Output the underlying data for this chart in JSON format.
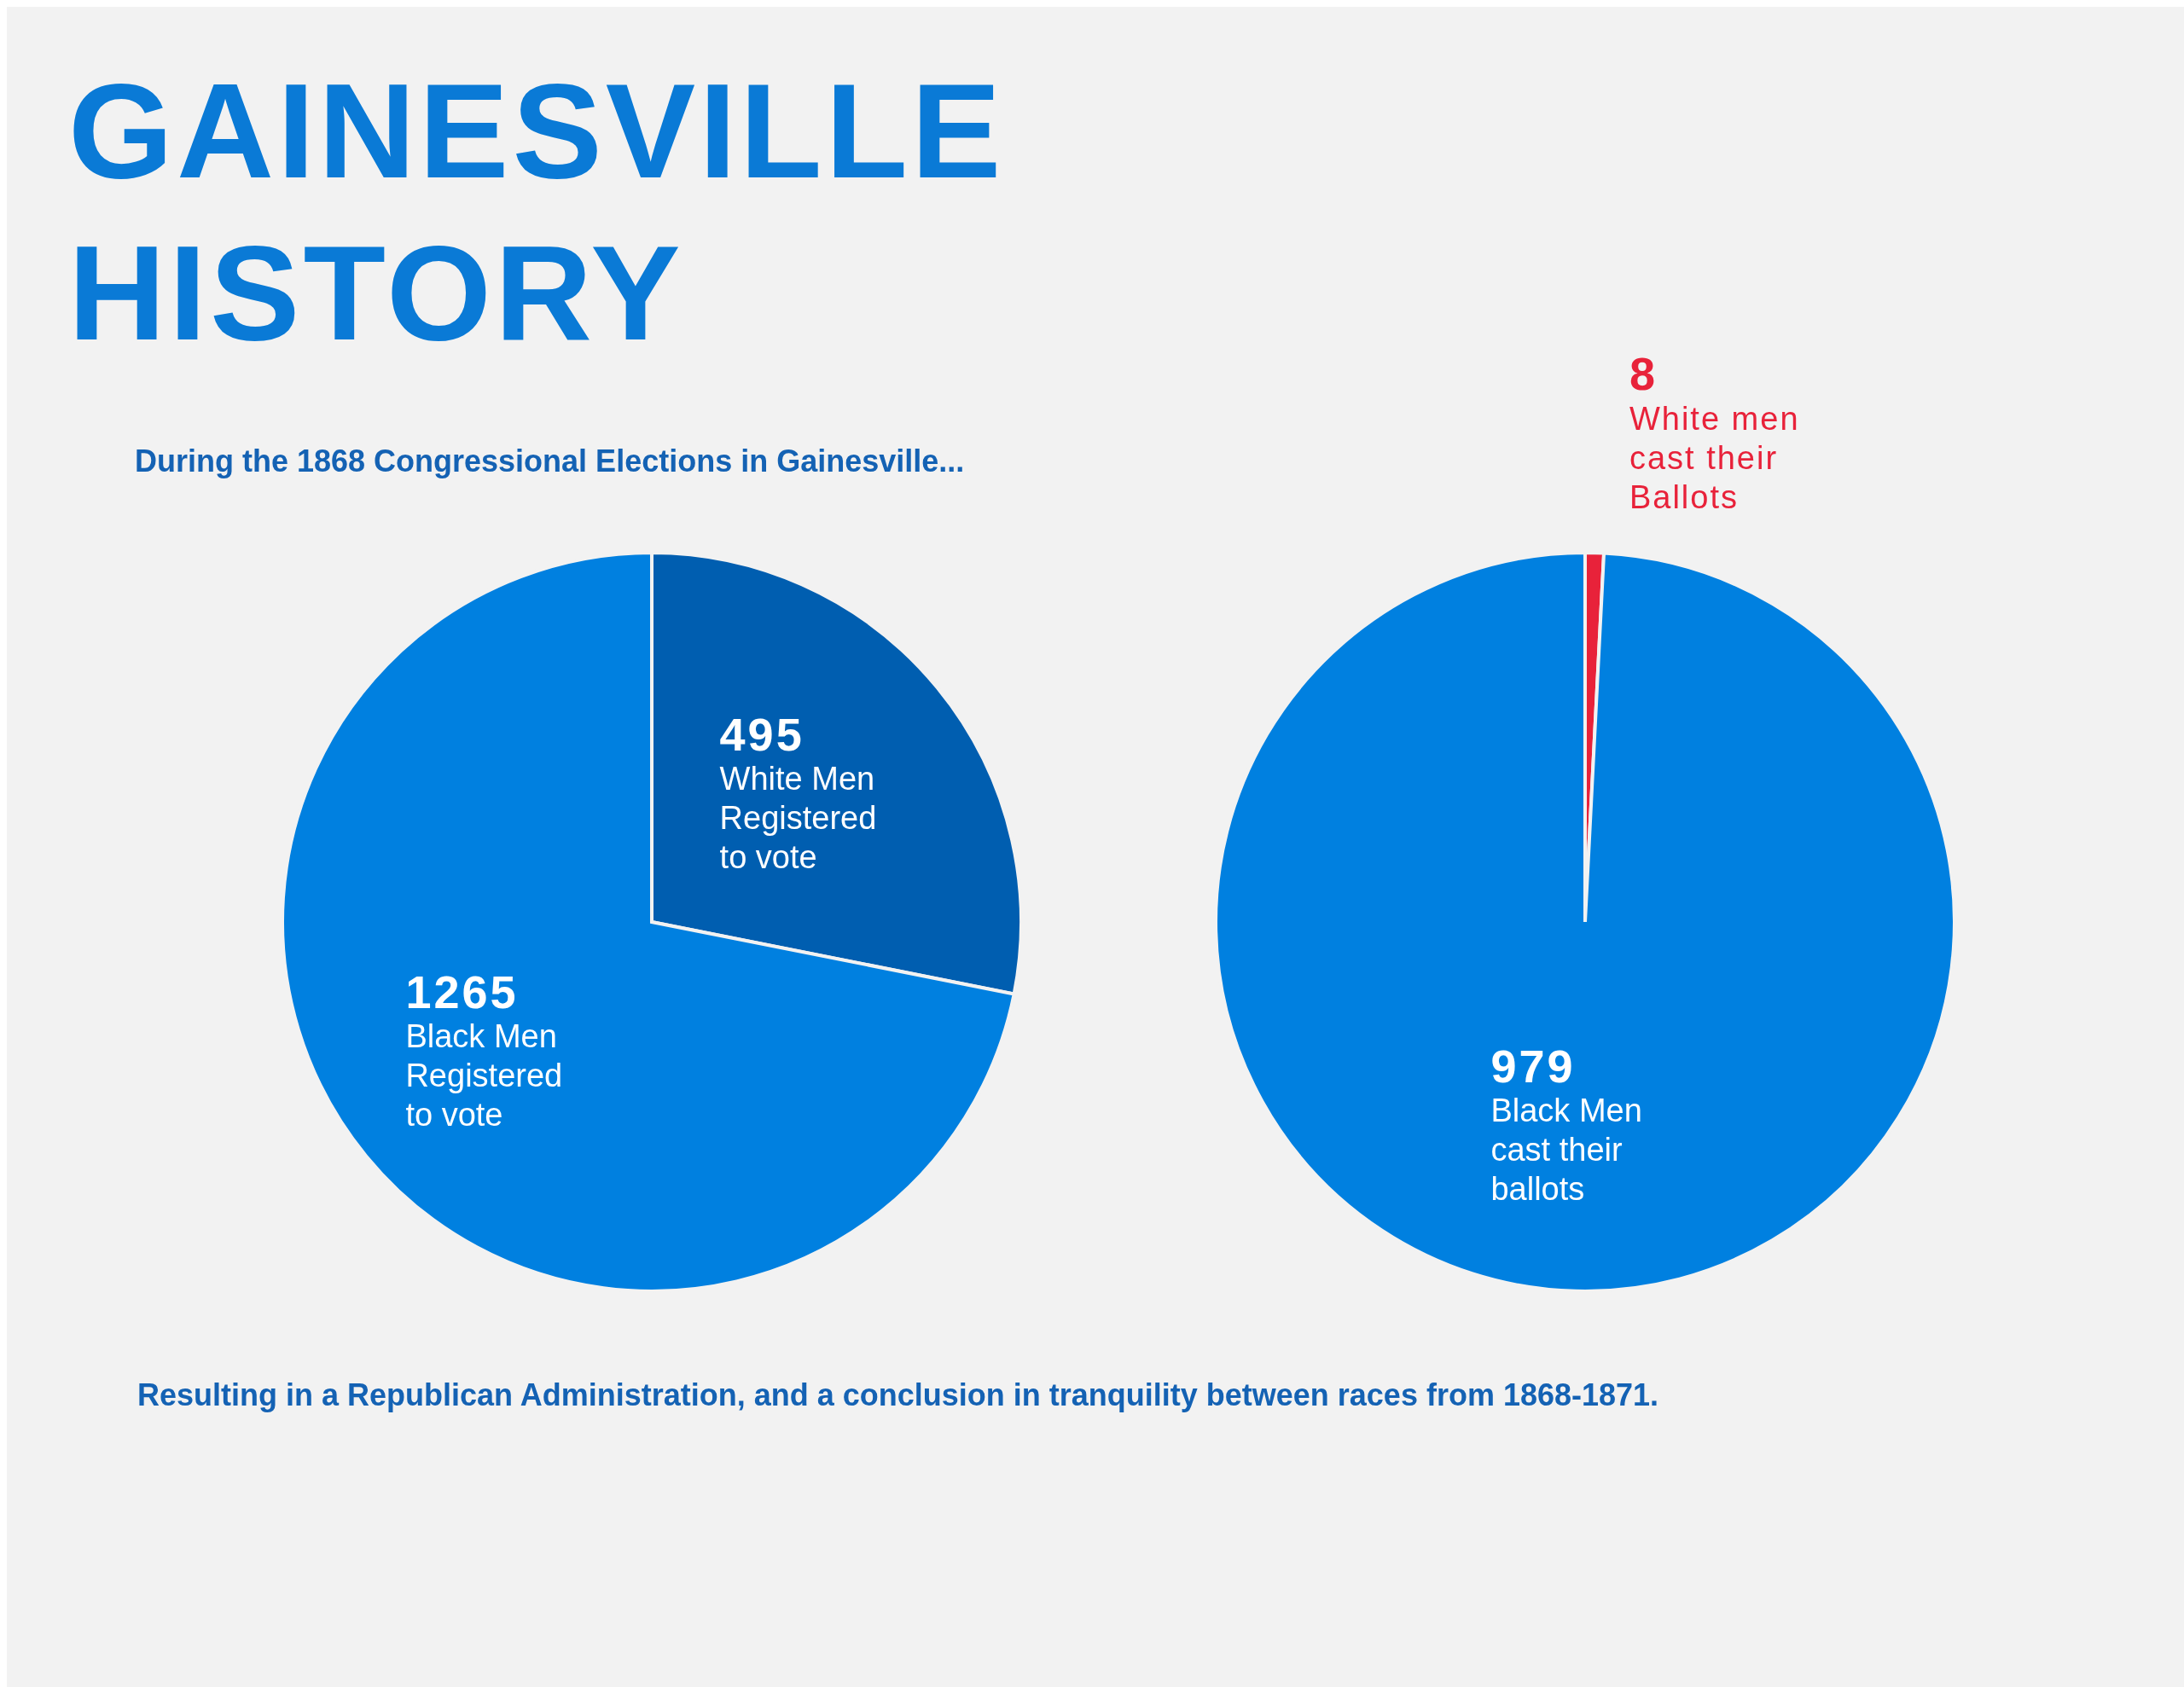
{
  "chart_data": [
    {
      "type": "pie",
      "title": "GAINESVILLE HISTORY",
      "subtitle": "During the 1868 Congressional Elections in Gainesville...",
      "categories": [
        "White Men Registered to vote",
        "Black Men Registered to vote"
      ],
      "values": [
        495,
        1265
      ],
      "colors": [
        "#005eb0",
        "#0080e0"
      ],
      "data_labels": true
    },
    {
      "type": "pie",
      "categories": [
        "White men cast their Ballots",
        "Black Men cast their ballots"
      ],
      "values": [
        8,
        979
      ],
      "colors": [
        "#e8223a",
        "#0080e0"
      ],
      "data_labels": true,
      "annotations": [
        "Resulting in a Republican Administration, and a conclusion in tranquility between races from 1868-1871."
      ]
    }
  ]
}
